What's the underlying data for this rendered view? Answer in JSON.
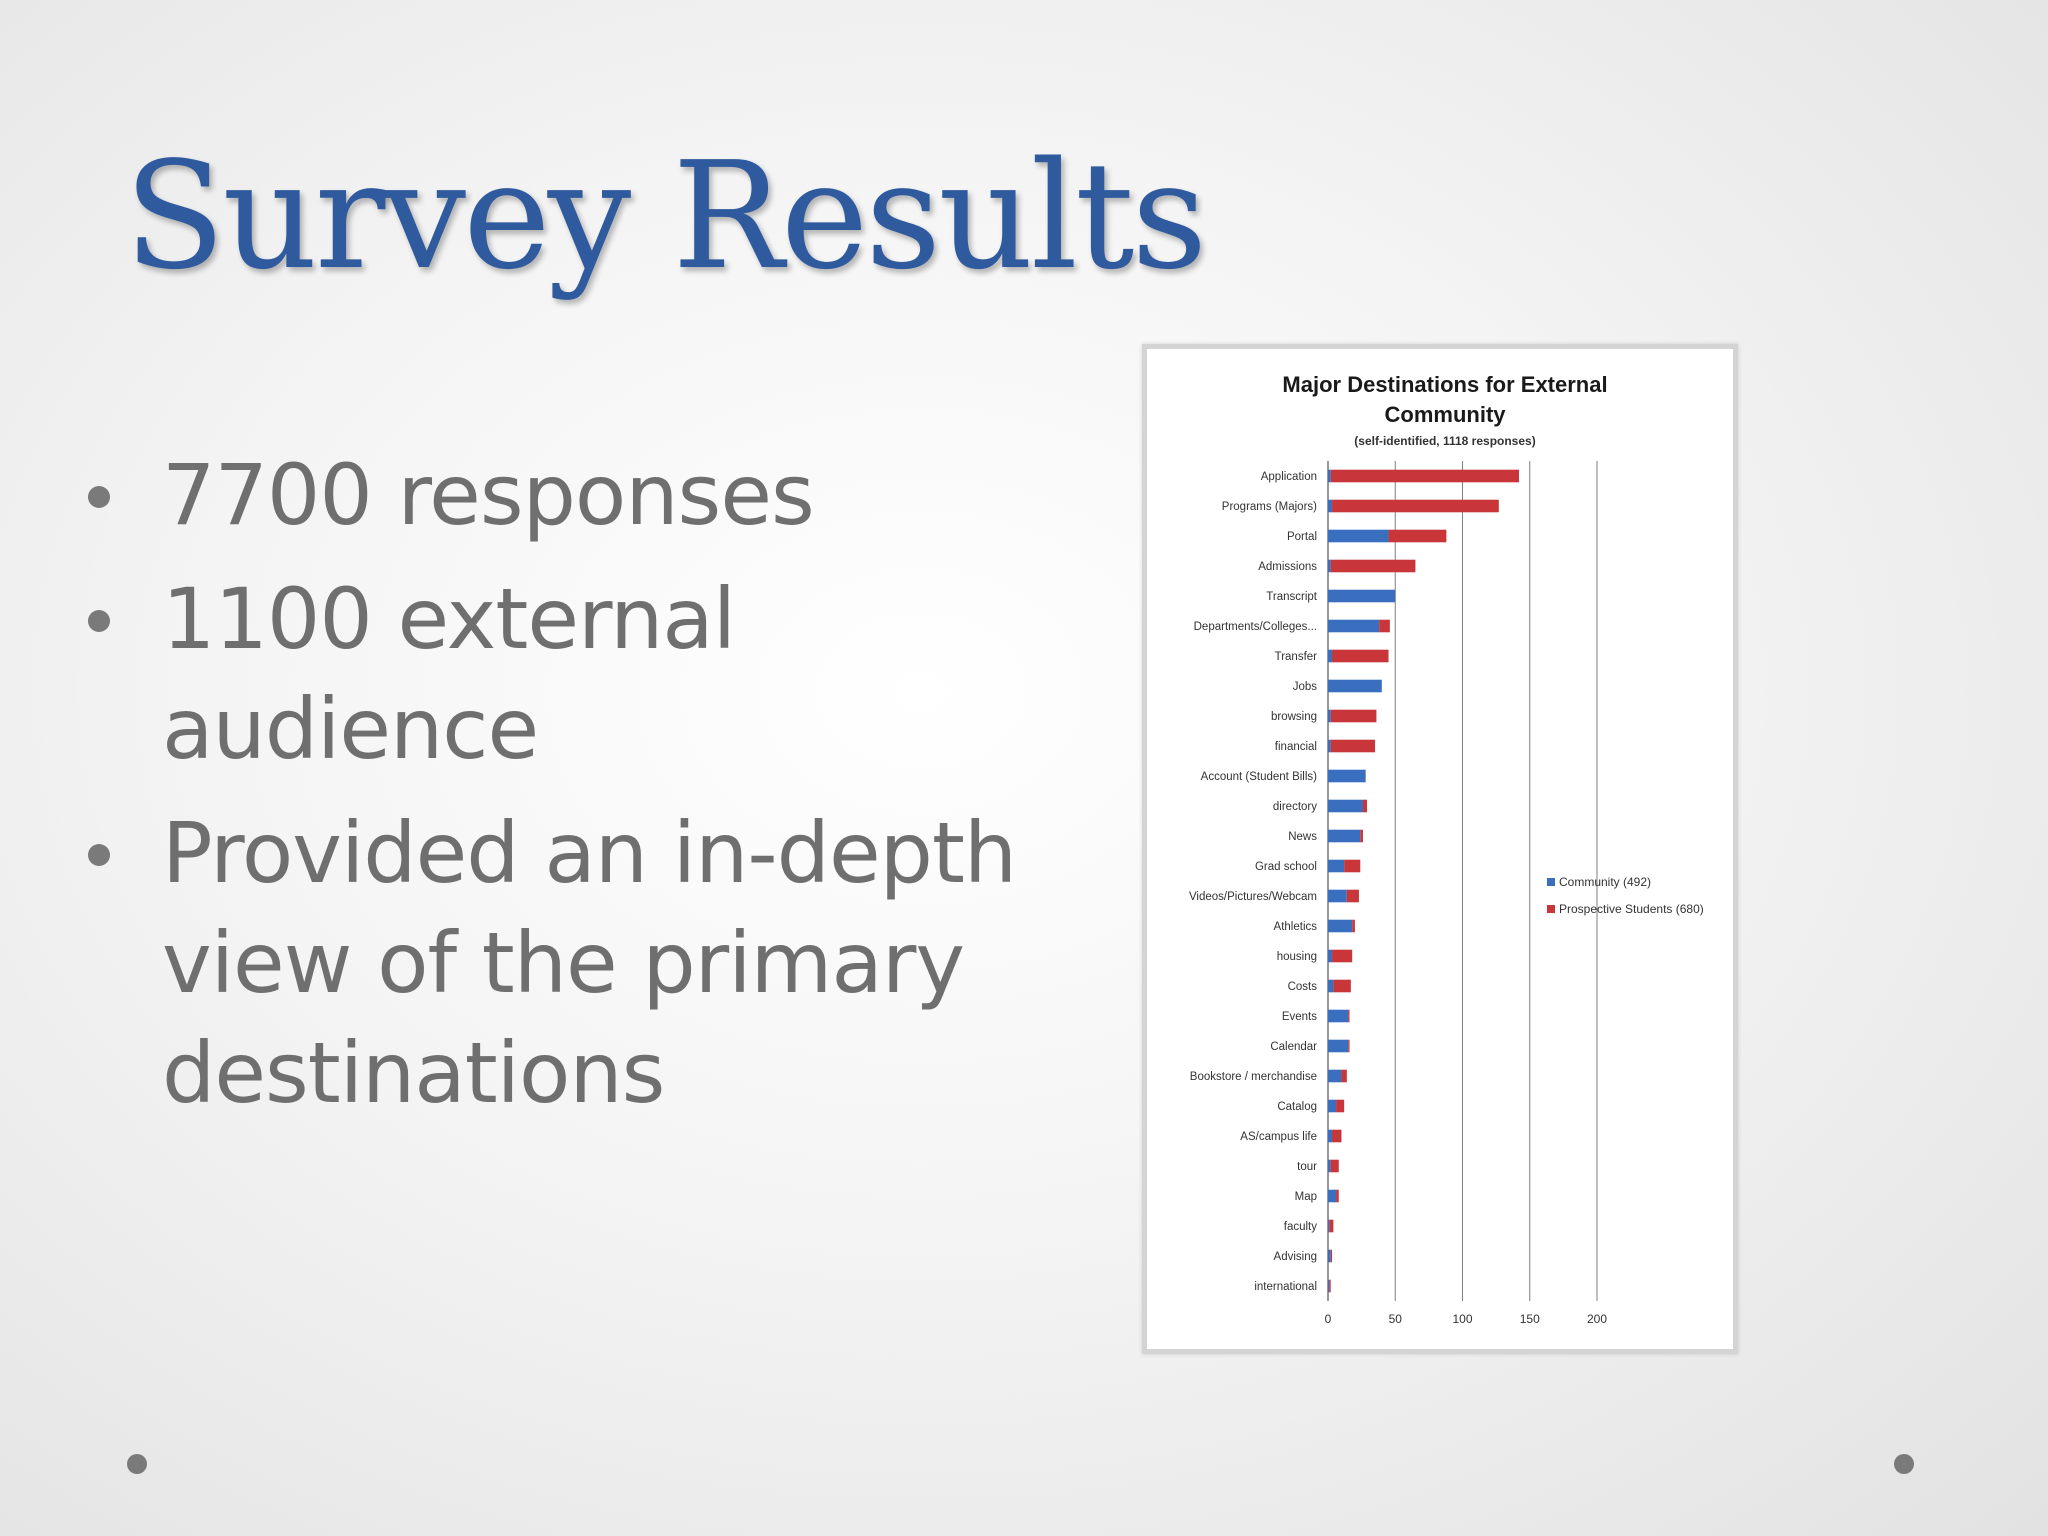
{
  "slide": {
    "title": "Survey Results",
    "bullets": [
      "7700 responses",
      "1100 external audience",
      "Provided an in-depth view of the primary destinations"
    ]
  },
  "colors": {
    "title": "#2f5a9e",
    "body_text": "#6f6f6f",
    "community": "#3a6fbf",
    "prospective": "#c9363a",
    "gridline": "#7f7f7f"
  },
  "chart_data": {
    "type": "bar",
    "orientation": "horizontal",
    "stacked": true,
    "title": "Major Destinations for External Community",
    "subtitle": "(self-identified, 1118 responses)",
    "categories": [
      "Application",
      "Programs (Majors)",
      "Portal",
      "Admissions",
      "Transcript",
      "Departments/Colleges...",
      "Transfer",
      "Jobs",
      "browsing",
      "financial",
      "Account (Student Bills)",
      "directory",
      "News",
      "Grad school",
      "Videos/Pictures/Webcam",
      "Athletics",
      "housing",
      "Costs",
      "Events",
      "Calendar",
      "Bookstore / merchandise",
      "Catalog",
      "AS/campus life",
      "tour",
      "Map",
      "faculty",
      "Advising",
      "international"
    ],
    "series": [
      {
        "name": "Community (492)",
        "color": "#3a6fbf",
        "values": [
          2,
          3,
          45,
          2,
          50,
          38,
          3,
          40,
          2,
          2,
          28,
          26,
          24,
          12,
          14,
          18,
          3,
          4,
          15,
          15,
          10,
          6,
          3,
          2,
          6,
          1,
          2,
          1
        ]
      },
      {
        "name": "Prospective Students (680)",
        "color": "#c9363a",
        "values": [
          140,
          124,
          43,
          63,
          0,
          8,
          42,
          0,
          34,
          33,
          0,
          3,
          2,
          12,
          9,
          2,
          15,
          13,
          1,
          1,
          4,
          6,
          7,
          6,
          2,
          3,
          1,
          1
        ]
      }
    ],
    "xlim": [
      0,
      200
    ],
    "xticks": [
      0,
      50,
      100,
      150,
      200
    ],
    "grid": true,
    "legend": "right"
  }
}
